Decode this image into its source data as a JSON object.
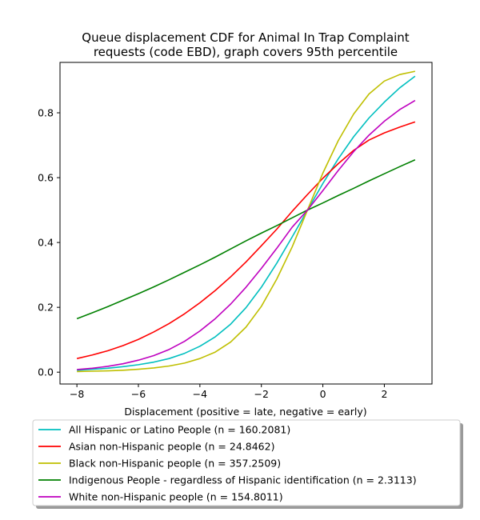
{
  "chart_data": {
    "type": "line",
    "title_lines": [
      "Queue displacement CDF for Animal In Trap Complaint",
      "requests (code EBD), graph covers 95th percentile"
    ],
    "xlabel": "Displacement (positive = late, negative = early)",
    "ylabel": "",
    "xlim": [
      -8.55,
      3.55
    ],
    "ylim": [
      -0.0365,
      0.9555
    ],
    "xticks": [
      -8,
      -6,
      -4,
      -2,
      0,
      2
    ],
    "xtick_labels": [
      "−8",
      "−6",
      "−4",
      "−2",
      "0",
      "2"
    ],
    "yticks": [
      0.0,
      0.2,
      0.4,
      0.6,
      0.8
    ],
    "ytick_labels": [
      "0.0",
      "0.2",
      "0.4",
      "0.6",
      "0.8"
    ],
    "grid": false,
    "legend_position": "below plot",
    "series": [
      {
        "name": "All Hispanic or Latino People (n = 160.2081)",
        "color": "#00bfbf",
        "x": [
          -8,
          -7.5,
          -7,
          -6.5,
          -6,
          -5.5,
          -5,
          -4.5,
          -4,
          -3.5,
          -3,
          -2.5,
          -2,
          -1.5,
          -1,
          -0.5,
          0,
          0.5,
          1,
          1.5,
          2,
          2.5,
          3
        ],
        "y": [
          0.006,
          0.009,
          0.012,
          0.017,
          0.023,
          0.031,
          0.042,
          0.058,
          0.08,
          0.109,
          0.148,
          0.199,
          0.262,
          0.336,
          0.417,
          0.5,
          0.582,
          0.658,
          0.726,
          0.784,
          0.833,
          0.877,
          0.913
        ]
      },
      {
        "name": "Asian non-Hispanic people (n = 24.8462)",
        "color": "#ff0000",
        "x": [
          -8,
          -7.5,
          -7,
          -6.5,
          -6,
          -5.5,
          -5,
          -4.5,
          -4,
          -3.5,
          -3,
          -2.5,
          -2,
          -1.5,
          -1,
          -0.5,
          0,
          0.5,
          1,
          1.5,
          2,
          2.5,
          3
        ],
        "y": [
          0.042,
          0.053,
          0.066,
          0.082,
          0.101,
          0.124,
          0.15,
          0.18,
          0.214,
          0.252,
          0.294,
          0.34,
          0.39,
          0.441,
          0.496,
          0.548,
          0.598,
          0.643,
          0.684,
          0.716,
          0.738,
          0.756,
          0.772
        ]
      },
      {
        "name": "Black non-Hispanic people (n = 357.2509)",
        "color": "#bfbf00",
        "x": [
          -8,
          -7.5,
          -7,
          -6.5,
          -6,
          -5.5,
          -5,
          -4.5,
          -4,
          -3.5,
          -3,
          -2.5,
          -2,
          -1.5,
          -1,
          -0.5,
          0,
          0.5,
          1,
          1.5,
          2,
          2.5,
          3
        ],
        "y": [
          0.002,
          0.003,
          0.004,
          0.006,
          0.009,
          0.013,
          0.019,
          0.028,
          0.042,
          0.062,
          0.093,
          0.139,
          0.203,
          0.287,
          0.386,
          0.5,
          0.614,
          0.714,
          0.796,
          0.858,
          0.898,
          0.918,
          0.928
        ]
      },
      {
        "name": "Indigenous People - regardless of Hispanic identification (n = 2.3113)",
        "color": "#008000",
        "x": [
          -8,
          -7.5,
          -7,
          -6.5,
          -6,
          -5.5,
          -5,
          -4.5,
          -4,
          -3.5,
          -3,
          -2.5,
          -2,
          -1.5,
          -1,
          -0.5,
          0,
          0.5,
          1,
          1.5,
          2,
          2.5,
          3
        ],
        "y": [
          0.165,
          0.183,
          0.202,
          0.222,
          0.242,
          0.263,
          0.285,
          0.308,
          0.331,
          0.355,
          0.38,
          0.405,
          0.429,
          0.452,
          0.476,
          0.5,
          0.522,
          0.545,
          0.567,
          0.59,
          0.612,
          0.634,
          0.655
        ]
      },
      {
        "name": "White non-Hispanic people (n = 154.8011)",
        "color": "#bf00bf",
        "x": [
          -8,
          -7.5,
          -7,
          -6.5,
          -6,
          -5.5,
          -5,
          -4.5,
          -4,
          -3.5,
          -3,
          -2.5,
          -2,
          -1.5,
          -1,
          -0.5,
          0,
          0.5,
          1,
          1.5,
          2,
          2.5,
          3
        ],
        "y": [
          0.008,
          0.012,
          0.018,
          0.026,
          0.037,
          0.051,
          0.07,
          0.095,
          0.127,
          0.165,
          0.21,
          0.262,
          0.32,
          0.382,
          0.447,
          0.5,
          0.56,
          0.622,
          0.68,
          0.731,
          0.774,
          0.81,
          0.838
        ]
      }
    ]
  }
}
